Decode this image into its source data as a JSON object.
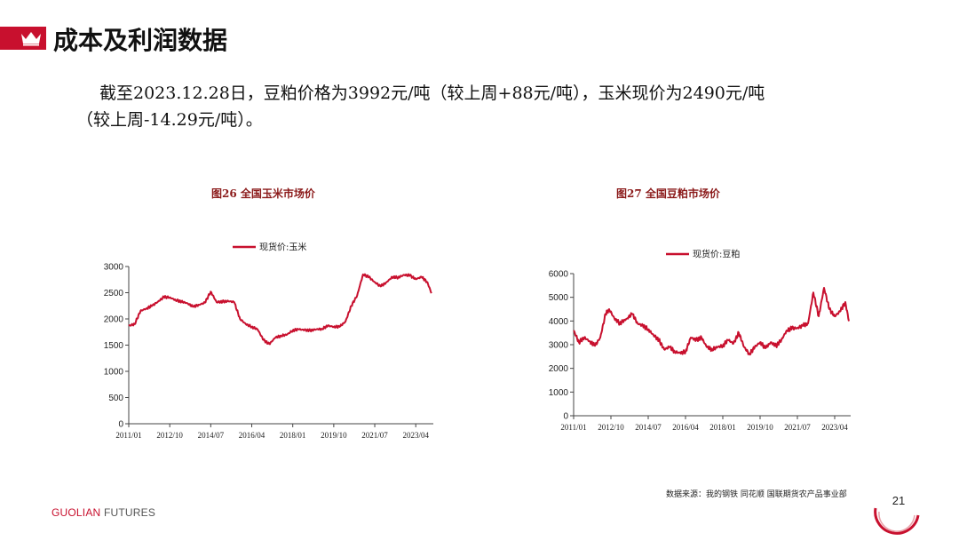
{
  "header": {
    "title": "成本及利润数据",
    "accent_color": "#c8102e",
    "icon": "crown-icon"
  },
  "summary": {
    "line1": "截至2023.12.28日，豆粕价格为3992元/吨（较上周+88元/吨），玉米现价为2490元/吨",
    "line2": "（较上周-14.29元/吨）。"
  },
  "chart_data": [
    {
      "type": "line",
      "title": "图26 全国玉米市场价",
      "legend_position": "top-center",
      "series": [
        {
          "name": "现货价:玉米",
          "color": "#c8102e",
          "points": [
            [
              "2011-01",
              1870
            ],
            [
              "2011-04",
              1900
            ],
            [
              "2011-07",
              2150
            ],
            [
              "2011-10",
              2200
            ],
            [
              "2012-01",
              2250
            ],
            [
              "2012-04",
              2330
            ],
            [
              "2012-07",
              2420
            ],
            [
              "2012-10",
              2410
            ],
            [
              "2013-01",
              2360
            ],
            [
              "2013-04",
              2330
            ],
            [
              "2013-07",
              2300
            ],
            [
              "2013-10",
              2230
            ],
            [
              "2014-01",
              2270
            ],
            [
              "2014-04",
              2310
            ],
            [
              "2014-07",
              2520
            ],
            [
              "2014-10",
              2320
            ],
            [
              "2015-01",
              2330
            ],
            [
              "2015-04",
              2340
            ],
            [
              "2015-07",
              2320
            ],
            [
              "2015-10",
              2000
            ],
            [
              "2016-01",
              1900
            ],
            [
              "2016-04",
              1850
            ],
            [
              "2016-07",
              1800
            ],
            [
              "2016-10",
              1600
            ],
            [
              "2017-01",
              1520
            ],
            [
              "2017-04",
              1640
            ],
            [
              "2017-07",
              1680
            ],
            [
              "2017-10",
              1700
            ],
            [
              "2018-01",
              1780
            ],
            [
              "2018-04",
              1800
            ],
            [
              "2018-07",
              1790
            ],
            [
              "2018-10",
              1780
            ],
            [
              "2019-01",
              1800
            ],
            [
              "2019-04",
              1810
            ],
            [
              "2019-07",
              1870
            ],
            [
              "2019-10",
              1850
            ],
            [
              "2020-01",
              1850
            ],
            [
              "2020-04",
              1950
            ],
            [
              "2020-07",
              2250
            ],
            [
              "2020-10",
              2450
            ],
            [
              "2021-01",
              2850
            ],
            [
              "2021-04",
              2800
            ],
            [
              "2021-07",
              2700
            ],
            [
              "2021-10",
              2620
            ],
            [
              "2022-01",
              2700
            ],
            [
              "2022-04",
              2800
            ],
            [
              "2022-07",
              2790
            ],
            [
              "2022-10",
              2840
            ],
            [
              "2023-01",
              2830
            ],
            [
              "2023-04",
              2760
            ],
            [
              "2023-07",
              2800
            ],
            [
              "2023-10",
              2700
            ],
            [
              "2023-12",
              2490
            ]
          ]
        }
      ],
      "x_ticks": [
        "2011/01",
        "2012/10",
        "2014/07",
        "2016/04",
        "2018/01",
        "2019/10",
        "2021/07",
        "2023/04"
      ],
      "y_ticks": [
        0,
        500,
        1000,
        1500,
        2000,
        2500,
        3000
      ],
      "ylim": [
        0,
        3000
      ],
      "xlim": [
        "2011-01",
        "2024-01"
      ],
      "grid": false
    },
    {
      "type": "line",
      "title": "图27 全国豆粕市场价",
      "legend_position": "top-center",
      "series": [
        {
          "name": "现货价:豆粕",
          "color": "#c8102e",
          "points": [
            [
              "2011-01",
              3600
            ],
            [
              "2011-04",
              3100
            ],
            [
              "2011-07",
              3300
            ],
            [
              "2011-10",
              3150
            ],
            [
              "2012-01",
              2950
            ],
            [
              "2012-04",
              3300
            ],
            [
              "2012-07",
              4300
            ],
            [
              "2012-09",
              4500
            ],
            [
              "2012-12",
              4100
            ],
            [
              "2013-03",
              3900
            ],
            [
              "2013-07",
              4100
            ],
            [
              "2013-10",
              4300
            ],
            [
              "2014-01",
              3900
            ],
            [
              "2014-04",
              3800
            ],
            [
              "2014-07",
              3650
            ],
            [
              "2014-10",
              3400
            ],
            [
              "2015-01",
              3200
            ],
            [
              "2015-04",
              2800
            ],
            [
              "2015-07",
              2900
            ],
            [
              "2015-10",
              2700
            ],
            [
              "2016-01",
              2650
            ],
            [
              "2016-04",
              2700
            ],
            [
              "2016-07",
              3300
            ],
            [
              "2016-10",
              3200
            ],
            [
              "2017-01",
              3300
            ],
            [
              "2017-04",
              2900
            ],
            [
              "2017-07",
              2800
            ],
            [
              "2017-10",
              2900
            ],
            [
              "2018-01",
              2950
            ],
            [
              "2018-04",
              3200
            ],
            [
              "2018-07",
              3050
            ],
            [
              "2018-10",
              3500
            ],
            [
              "2019-01",
              2900
            ],
            [
              "2019-04",
              2600
            ],
            [
              "2019-07",
              2900
            ],
            [
              "2019-10",
              3100
            ],
            [
              "2020-01",
              2850
            ],
            [
              "2020-04",
              3100
            ],
            [
              "2020-07",
              2950
            ],
            [
              "2020-10",
              3200
            ],
            [
              "2021-01",
              3600
            ],
            [
              "2021-04",
              3700
            ],
            [
              "2021-07",
              3700
            ],
            [
              "2021-10",
              3800
            ],
            [
              "2022-01",
              3900
            ],
            [
              "2022-04",
              5200
            ],
            [
              "2022-07",
              4200
            ],
            [
              "2022-10",
              5400
            ],
            [
              "2023-01",
              4500
            ],
            [
              "2023-04",
              4200
            ],
            [
              "2023-07",
              4400
            ],
            [
              "2023-10",
              4800
            ],
            [
              "2023-12",
              3992
            ]
          ]
        }
      ],
      "x_ticks": [
        "2011/01",
        "2012/10",
        "2014/07",
        "2016/04",
        "2018/01",
        "2019/10",
        "2021/07",
        "2023/04"
      ],
      "y_ticks": [
        0,
        1000,
        2000,
        3000,
        4000,
        5000,
        6000
      ],
      "ylim": [
        0,
        6000
      ],
      "xlim": [
        "2011-01",
        "2024-01"
      ],
      "grid": false
    }
  ],
  "footer": {
    "source": "数据来源：我的钢铁 同花顺 国联期货农产品事业部",
    "brand_part1": "GUOLIAN",
    "brand_part2": "FUTURES",
    "page_number": "21"
  }
}
